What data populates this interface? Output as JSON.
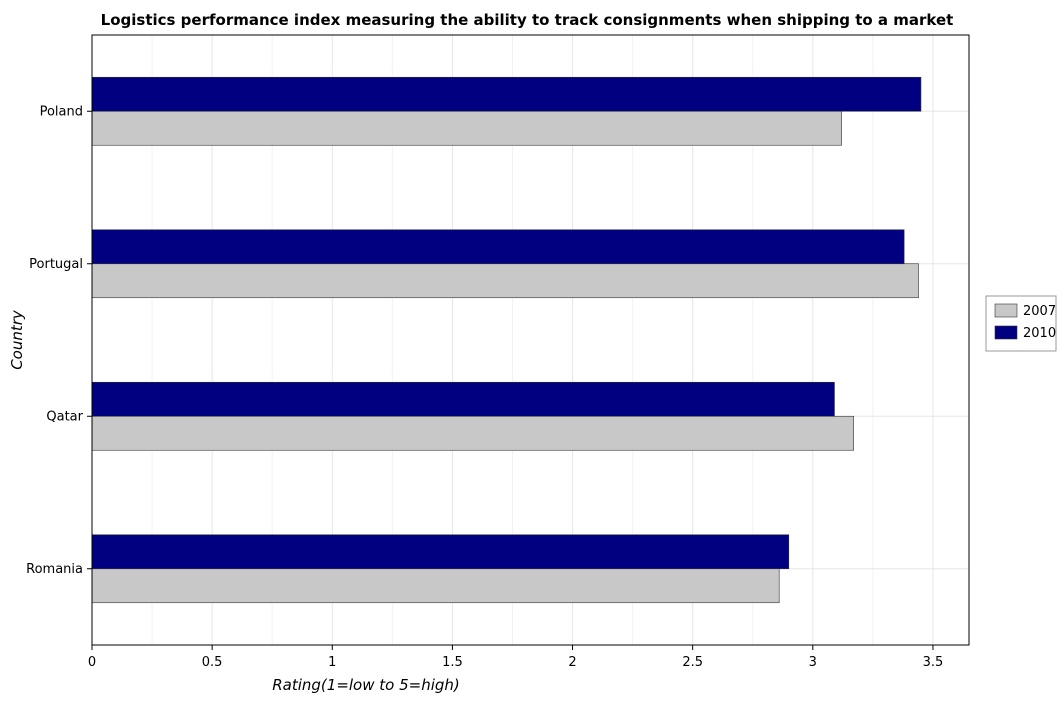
{
  "chart_data": {
    "type": "bar",
    "orientation": "horizontal",
    "title": "Logistics performance index measuring the ability to track consignments when shipping to a market",
    "xlabel": "Rating(1=low to 5=high)",
    "ylabel": "Country",
    "categories": [
      "Poland",
      "Portugal",
      "Qatar",
      "Romania"
    ],
    "series": [
      {
        "name": "2007",
        "values": [
          3.12,
          3.44,
          3.17,
          2.86
        ],
        "color": "#c8c8c8"
      },
      {
        "name": "2010",
        "values": [
          3.45,
          3.38,
          3.09,
          2.9
        ],
        "color": "#000080"
      }
    ],
    "xlim": [
      0,
      3.65
    ],
    "xticks": [
      0,
      0.5,
      1,
      1.5,
      2,
      2.5,
      3,
      3.5
    ],
    "xtick_labels": [
      "0",
      "0.5",
      "1",
      "1.5",
      "2",
      "2.5",
      "3",
      "3.5"
    ],
    "grid": true,
    "legend_position": "right"
  }
}
